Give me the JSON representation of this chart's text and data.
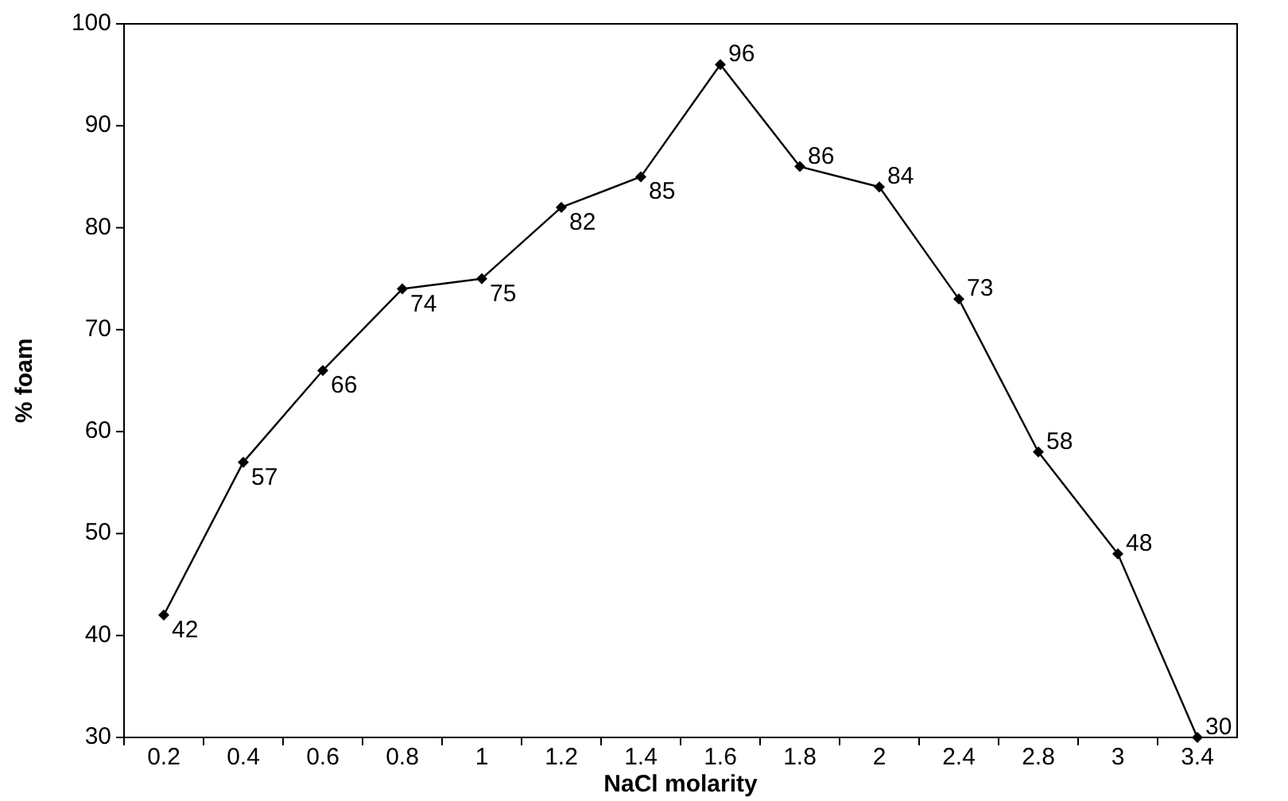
{
  "chart_data": {
    "type": "line",
    "xlabel": "NaCl molarity",
    "ylabel": "% foam",
    "categories": [
      "0.2",
      "0.4",
      "0.6",
      "0.8",
      "1",
      "1.2",
      "1.4",
      "1.6",
      "1.8",
      "2",
      "2.4",
      "2.8",
      "3",
      "3.4"
    ],
    "series": [
      {
        "color": "#000000",
        "values": [
          42,
          57,
          66,
          74,
          75,
          82,
          85,
          96,
          86,
          84,
          73,
          58,
          48,
          30
        ]
      }
    ],
    "ylim": [
      30,
      100
    ],
    "yticks": [
      30,
      40,
      50,
      60,
      70,
      80,
      90,
      100
    ],
    "grid": false,
    "marker": "diamond",
    "line_style": "solid",
    "data_labels": true
  }
}
